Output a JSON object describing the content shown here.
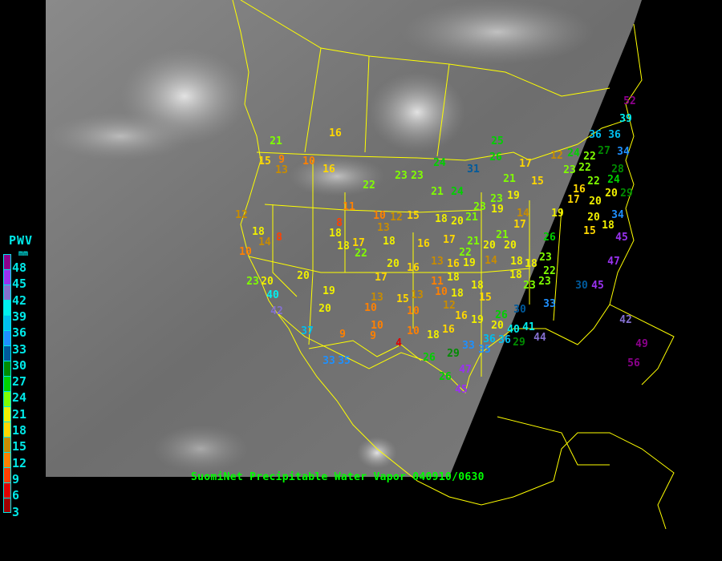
{
  "legend": {
    "title": "PWV",
    "unit": "mm",
    "labels": [
      "48",
      "45",
      "42",
      "39",
      "36",
      "33",
      "30",
      "27",
      "24",
      "21",
      "18",
      "15",
      "12",
      "9",
      "6",
      "3"
    ],
    "colors": [
      "#8b008b",
      "#9932f0",
      "#8470d0",
      "#00f0f0",
      "#00bfef",
      "#1e90ff",
      "#005a9c",
      "#008c00",
      "#00d000",
      "#80ff00",
      "#f0f000",
      "#ffd700",
      "#c88c00",
      "#ff8000",
      "#ff4000",
      "#e00000",
      "#a00000"
    ]
  },
  "caption": "SuomiNet Precipitable Water Vapor 040910/0630",
  "colors": {
    "borders": "#ffff00",
    "background": "#000000"
  },
  "stations": [
    21,
    15,
    13,
    9,
    10,
    16,
    16,
    12,
    18,
    14,
    8,
    10,
    23,
    20,
    40,
    42,
    20,
    19,
    20,
    37,
    9,
    33,
    35,
    11,
    8,
    18,
    18,
    17,
    22,
    22,
    10,
    13,
    18,
    17,
    13,
    10,
    10,
    9,
    4,
    10,
    10,
    13,
    15,
    23,
    23,
    24,
    21,
    24,
    15,
    12,
    18,
    20,
    21,
    23,
    19,
    23,
    19,
    16,
    17,
    21,
    20,
    22,
    21,
    20,
    18,
    14,
    20,
    16,
    13,
    16,
    19,
    11,
    18,
    10,
    18,
    18,
    15,
    12,
    16,
    19,
    20,
    18,
    16,
    26,
    26,
    29,
    33,
    35,
    36,
    36,
    40,
    41,
    44,
    30,
    26,
    29,
    33,
    23,
    23,
    18,
    18,
    22,
    23,
    26,
    17,
    14,
    19,
    20,
    15,
    18,
    20,
    34,
    45,
    47,
    30,
    45,
    42,
    49,
    56,
    47,
    45,
    25,
    26,
    31,
    17,
    12,
    15,
    21,
    23,
    22,
    22,
    24,
    22,
    16,
    20,
    17,
    36,
    36,
    52,
    39,
    34,
    27,
    28,
    24,
    29
  ]
}
